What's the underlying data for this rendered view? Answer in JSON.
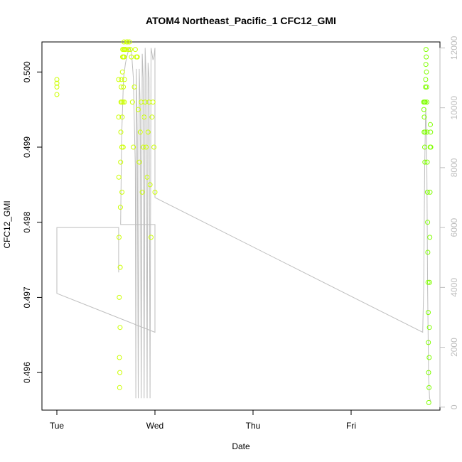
{
  "chart_data": {
    "type": "scatter",
    "title": "ATOM4 Northeast_Pacific_1 CFC12_GMI",
    "xlabel": "Date",
    "ylabel": "CFC12_GMI",
    "x_ticks": [
      "Tue",
      "Wed",
      "Thu",
      "Fri"
    ],
    "ylim": [
      0.4955,
      0.5004
    ],
    "y_ticks": [
      "0.496",
      "0.497",
      "0.498",
      "0.499",
      "0.500"
    ],
    "y2lim": [
      -100,
      12200
    ],
    "y2_ticks": [
      "0",
      "2000",
      "4000",
      "6000",
      "8000",
      "10000",
      "12000"
    ],
    "grid": false,
    "colors": {
      "early": "#ccff00",
      "late": "#80ff00",
      "altitude_line": "#bebebe",
      "axis": "#000000",
      "secondary_axis": "#bebebe"
    },
    "series": [
      {
        "kind": "points",
        "color": "#ccff00",
        "x": [
          0.0,
          0.0,
          0.0,
          0.0,
          0.63,
          0.63,
          0.632,
          0.634,
          0.636,
          0.638,
          0.64,
          0.642,
          0.644,
          0.646,
          0.648,
          0.65,
          0.652,
          0.654,
          0.656,
          0.658,
          0.66,
          0.662,
          0.664,
          0.666,
          0.668,
          0.67,
          0.672,
          0.674,
          0.676,
          0.678,
          0.68,
          0.682,
          0.684,
          0.686,
          0.688,
          0.69,
          0.692,
          0.7,
          0.71,
          0.72,
          0.73,
          0.74,
          0.75,
          0.76,
          0.77,
          0.78,
          0.79,
          0.8,
          0.81,
          0.82,
          0.83,
          0.84,
          0.85,
          0.86,
          0.87,
          0.88,
          0.89,
          0.9,
          0.91,
          0.92,
          0.93,
          0.94,
          0.95,
          0.96,
          0.97,
          0.98,
          0.99,
          1.0
        ],
        "y": [
          0.4999,
          0.49985,
          0.4997,
          0.4998,
          0.4999,
          0.4994,
          0.4986,
          0.4978,
          0.497,
          0.4962,
          0.4958,
          0.496,
          0.4966,
          0.4974,
          0.4982,
          0.4988,
          0.4992,
          0.4996,
          0.4998,
          0.4999,
          0.4996,
          0.499,
          0.4984,
          0.4994,
          0.5,
          0.5002,
          0.5003,
          0.4996,
          0.499,
          0.4998,
          0.5002,
          0.5003,
          0.5004,
          0.5002,
          0.4996,
          0.4999,
          0.5003,
          0.5003,
          0.5004,
          0.5004,
          0.5003,
          0.5004,
          0.5003,
          0.5002,
          0.4996,
          0.499,
          0.4998,
          0.5003,
          0.5002,
          0.5002,
          0.4995,
          0.4988,
          0.4992,
          0.4996,
          0.4984,
          0.499,
          0.4994,
          0.4996,
          0.499,
          0.4986,
          0.4992,
          0.4996,
          0.4985,
          0.4978,
          0.4994,
          0.4996,
          0.499,
          0.4984
        ]
      },
      {
        "kind": "points",
        "color": "#80ff00",
        "x": [
          3.74,
          3.742,
          3.744,
          3.746,
          3.748,
          3.75,
          3.752,
          3.754,
          3.756,
          3.758,
          3.76,
          3.762,
          3.764,
          3.766,
          3.768,
          3.77,
          3.772,
          3.774,
          3.776,
          3.778,
          3.78,
          3.782,
          3.784,
          3.786,
          3.788,
          3.79,
          3.792,
          3.794,
          3.796,
          3.798,
          3.8,
          3.802,
          3.804,
          3.806,
          3.808,
          3.81,
          3.812
        ],
        "y": [
          0.4996,
          0.4995,
          0.4992,
          0.4994,
          0.4996,
          0.499,
          0.4988,
          0.4992,
          0.4996,
          0.4998,
          0.4999,
          0.5001,
          0.5003,
          0.5002,
          0.5,
          0.4998,
          0.4996,
          0.4992,
          0.4988,
          0.4984,
          0.498,
          0.4976,
          0.4972,
          0.4968,
          0.4964,
          0.496,
          0.4956,
          0.4958,
          0.4962,
          0.4966,
          0.4972,
          0.4978,
          0.4984,
          0.499,
          0.4993,
          0.4992,
          0.499
        ]
      },
      {
        "kind": "line",
        "axis": "secondary",
        "color": "#bebebe",
        "x": [
          0.63,
          0.63,
          0.0,
          0.0,
          1.0,
          1.0,
          0.65,
          0.66,
          0.68,
          0.7,
          0.72,
          0.74,
          0.76,
          0.78,
          0.8,
          0.805,
          0.81,
          0.82,
          0.83,
          0.84,
          0.85,
          0.86,
          0.87,
          0.88,
          0.89,
          0.9,
          0.91,
          0.92,
          0.93,
          0.94,
          0.95,
          0.96,
          0.97,
          0.98,
          0.99,
          1.0,
          1.0,
          3.73,
          3.74,
          3.75,
          3.76,
          3.77,
          3.78,
          3.79,
          3.8,
          3.81
        ],
        "y": [
          4500,
          6000,
          6000,
          3800,
          2500,
          6100,
          6100,
          9000,
          11000,
          11500,
          11800,
          12000,
          11900,
          11000,
          8000,
          300,
          11300,
          9000,
          300,
          11300,
          10000,
          300,
          11800,
          11000,
          300,
          12000,
          11000,
          300,
          11500,
          11000,
          300,
          12000,
          11800,
          11600,
          11700,
          12000,
          7000,
          2500,
          4000,
          8000,
          10000,
          9000,
          4000,
          1000,
          300,
          200
        ]
      }
    ]
  }
}
